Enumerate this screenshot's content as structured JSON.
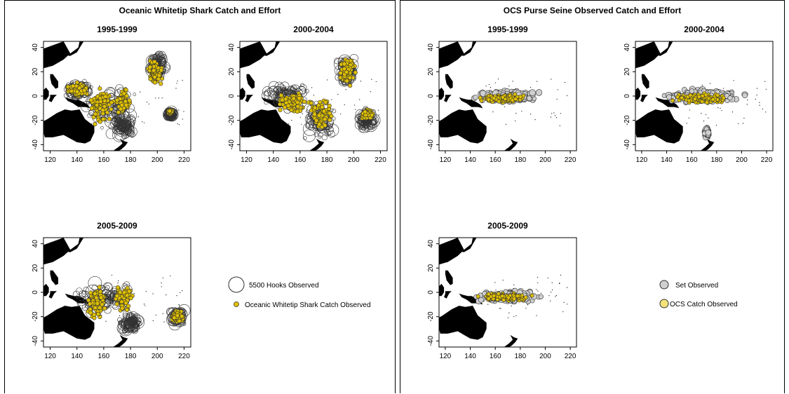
{
  "colors": {
    "catch_fill": "#e0c000",
    "effort_stroke": "#333333",
    "set_fill": "#cfcfcf",
    "ocs_fill": "#f5e27a",
    "land": "#000000"
  },
  "panels": [
    {
      "id": "left",
      "title": "Oceanic Whitetip Shark Catch and Effort",
      "legend": {
        "effort_label": "5500 Hooks Observed",
        "catch_label": "Oceanic Whitetip Shark  Catch Observed"
      }
    },
    {
      "id": "right",
      "title": "OCS Purse Seine Observed Catch and Effort",
      "legend": {
        "effort_label": "Set Observed",
        "catch_label": "OCS  Catch Observed"
      }
    }
  ],
  "chart_data": [
    {
      "type": "scatter",
      "panel": "left",
      "title": "1995-1999",
      "xlim": [
        115,
        225
      ],
      "ylim": [
        -45,
        45
      ],
      "xticks": [
        120,
        140,
        160,
        180,
        200,
        220
      ],
      "yticks": [
        -40,
        -20,
        0,
        20,
        40
      ],
      "series": [
        {
          "kind": "effort",
          "clusters": [
            [
              140,
              5,
              12,
              9
            ],
            [
              165,
              -10,
              22,
              20
            ],
            [
              175,
              -25,
              12,
              12
            ],
            [
              200,
              25,
              8,
              12
            ],
            [
              210,
              -15,
              3,
              3
            ]
          ]
        },
        {
          "kind": "catch",
          "clusters": [
            [
              140,
              5,
              10,
              7
            ],
            [
              158,
              -8,
              10,
              18
            ],
            [
              175,
              -5,
              6,
              12
            ],
            [
              198,
              20,
              6,
              12
            ],
            [
              210,
              -13,
              2,
              2
            ]
          ]
        }
      ]
    },
    {
      "type": "scatter",
      "panel": "left",
      "title": "2000-2004",
      "xlim": [
        115,
        225
      ],
      "ylim": [
        -45,
        45
      ],
      "xticks": [
        120,
        140,
        160,
        180,
        200,
        220
      ],
      "yticks": [
        -40,
        -20,
        0,
        20,
        40
      ],
      "series": [
        {
          "kind": "effort",
          "clusters": [
            [
              150,
              0,
              20,
              12
            ],
            [
              175,
              -20,
              14,
              18
            ],
            [
              195,
              20,
              8,
              15
            ],
            [
              210,
              -20,
              8,
              10
            ]
          ]
        },
        {
          "kind": "catch",
          "clusters": [
            [
              155,
              -5,
              15,
              10
            ],
            [
              175,
              -15,
              10,
              15
            ],
            [
              195,
              20,
              7,
              13
            ],
            [
              210,
              -15,
              5,
              5
            ]
          ]
        }
      ]
    },
    {
      "type": "scatter",
      "panel": "left",
      "title": "2005-2009",
      "xlim": [
        115,
        225
      ],
      "ylim": [
        -45,
        45
      ],
      "xticks": [
        120,
        140,
        160,
        180,
        200,
        220
      ],
      "yticks": [
        -40,
        -20,
        0,
        20,
        40
      ],
      "series": [
        {
          "kind": "effort",
          "clusters": [
            [
              160,
              -5,
              25,
              15
            ],
            [
              215,
              -20,
              7,
              8
            ],
            [
              180,
              -25,
              10,
              10
            ]
          ]
        },
        {
          "kind": "catch",
          "clusters": [
            [
              155,
              -8,
              8,
              15
            ],
            [
              175,
              -5,
              8,
              12
            ],
            [
              215,
              -20,
              5,
              6
            ]
          ]
        }
      ]
    },
    {
      "type": "scatter",
      "panel": "right",
      "title": "1995-1999",
      "xlim": [
        115,
        225
      ],
      "ylim": [
        -45,
        45
      ],
      "xticks": [
        120,
        140,
        160,
        180,
        200,
        220
      ],
      "yticks": [
        -40,
        -20,
        0,
        20,
        40
      ],
      "series": [
        {
          "kind": "effort",
          "clusters": [
            [
              170,
              0,
              32,
              6
            ]
          ]
        },
        {
          "kind": "catch",
          "clusters": [
            [
              165,
              -2,
              22,
              4
            ]
          ]
        }
      ]
    },
    {
      "type": "scatter",
      "panel": "right",
      "title": "2000-2004",
      "xlim": [
        115,
        225
      ],
      "ylim": [
        -45,
        45
      ],
      "xticks": [
        120,
        140,
        160,
        180,
        200,
        220
      ],
      "yticks": [
        -40,
        -20,
        0,
        20,
        40
      ],
      "series": [
        {
          "kind": "effort",
          "clusters": [
            [
              170,
              0,
              38,
              7
            ],
            [
              172,
              -30,
              2,
              5
            ]
          ]
        },
        {
          "kind": "catch",
          "clusters": [
            [
              168,
              -2,
              28,
              5
            ]
          ]
        }
      ]
    },
    {
      "type": "scatter",
      "panel": "right",
      "title": "2005-2009",
      "xlim": [
        115,
        225
      ],
      "ylim": [
        -45,
        45
      ],
      "xticks": [
        120,
        140,
        160,
        180,
        200,
        220
      ],
      "yticks": [
        -40,
        -20,
        0,
        20,
        40
      ],
      "series": [
        {
          "kind": "effort",
          "clusters": [
            [
              170,
              -3,
              32,
              6
            ]
          ]
        },
        {
          "kind": "catch",
          "clusters": [
            [
              168,
              -4,
              25,
              4
            ]
          ]
        }
      ]
    }
  ]
}
